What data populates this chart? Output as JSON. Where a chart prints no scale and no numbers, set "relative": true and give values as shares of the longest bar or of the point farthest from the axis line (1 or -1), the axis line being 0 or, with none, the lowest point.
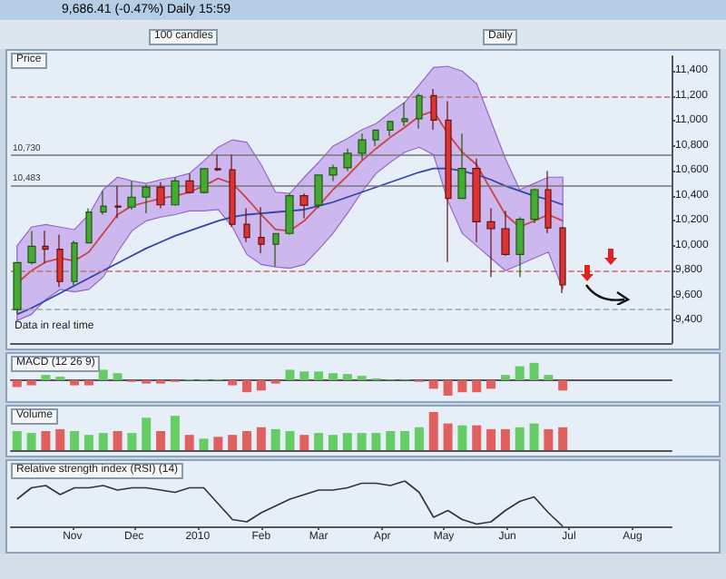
{
  "chart_data": [
    {
      "type": "candlestick",
      "title": "9,686.41 (-0.47%)   Daily 15:59",
      "annotations": [
        "Price",
        "100 candles",
        "Daily",
        "Data in real time"
      ],
      "x": [
        "2009-10-05",
        "2009-10-12",
        "2009-10-19",
        "2009-10-26",
        "2009-11-02",
        "2009-11-09",
        "2009-11-16",
        "2009-11-23",
        "2009-11-30",
        "2009-12-07",
        "2009-12-14",
        "2009-12-21",
        "2009-12-28",
        "2010-01-04",
        "2010-01-11",
        "2010-01-18",
        "2010-01-25",
        "2010-02-01",
        "2010-02-08",
        "2010-02-15",
        "2010-02-22",
        "2010-03-01",
        "2010-03-08",
        "2010-03-15",
        "2010-03-22",
        "2010-03-29",
        "2010-04-05",
        "2010-04-12",
        "2010-04-19",
        "2010-04-26",
        "2010-05-03",
        "2010-05-10",
        "2010-05-17",
        "2010-05-24",
        "2010-05-31",
        "2010-06-07",
        "2010-06-14",
        "2010-06-21",
        "2010-06-28"
      ],
      "ohlc": [
        [
          9488,
          9865,
          9460,
          9865
        ],
        [
          9865,
          10119,
          9850,
          9996
        ],
        [
          9996,
          10120,
          9860,
          9972
        ],
        [
          9972,
          10090,
          9670,
          9713
        ],
        [
          9713,
          10040,
          9680,
          10023
        ],
        [
          10023,
          10300,
          10020,
          10271
        ],
        [
          10271,
          10440,
          10250,
          10318
        ],
        [
          10318,
          10480,
          10220,
          10310
        ],
        [
          10310,
          10520,
          10290,
          10390
        ],
        [
          10390,
          10490,
          10260,
          10471
        ],
        [
          10471,
          10510,
          10300,
          10328
        ],
        [
          10328,
          10550,
          10320,
          10520
        ],
        [
          10520,
          10580,
          10420,
          10428
        ],
        [
          10428,
          10620,
          10420,
          10618
        ],
        [
          10618,
          10730,
          10600,
          10610
        ],
        [
          10610,
          10730,
          10150,
          10172
        ],
        [
          10172,
          10300,
          10030,
          10067
        ],
        [
          10067,
          10310,
          9940,
          10012
        ],
        [
          10012,
          10100,
          9835,
          10099
        ],
        [
          10099,
          10420,
          10090,
          10402
        ],
        [
          10402,
          10420,
          10220,
          10325
        ],
        [
          10325,
          10570,
          10300,
          10567
        ],
        [
          10567,
          10650,
          10520,
          10625
        ],
        [
          10625,
          10780,
          10600,
          10742
        ],
        [
          10742,
          10900,
          10690,
          10850
        ],
        [
          10850,
          10930,
          10800,
          10927
        ],
        [
          10927,
          11000,
          10880,
          10997
        ],
        [
          10997,
          11150,
          10960,
          11019
        ],
        [
          11019,
          11220,
          10940,
          11204
        ],
        [
          11204,
          11258,
          10930,
          11008
        ],
        [
          11008,
          11160,
          9870,
          10380
        ],
        [
          10380,
          10900,
          10380,
          10620
        ],
        [
          10620,
          10700,
          10030,
          10193
        ],
        [
          10193,
          10300,
          9750,
          10137
        ],
        [
          10137,
          10280,
          9920,
          9931
        ],
        [
          9931,
          10230,
          9750,
          10212
        ],
        [
          10212,
          10460,
          10180,
          10450
        ],
        [
          10450,
          10600,
          10100,
          10143
        ],
        [
          10143,
          10150,
          9620,
          9686
        ]
      ],
      "series": [
        {
          "type": "line",
          "color": "#cc4444",
          "values": [
            9700,
            9800,
            9870,
            9900,
            9880,
            9950,
            10100,
            10250,
            10320,
            10350,
            10380,
            10400,
            10430,
            10480,
            10540,
            10500,
            10380,
            10250,
            10130,
            10120,
            10200,
            10320,
            10450,
            10560,
            10680,
            10780,
            10870,
            10950,
            11040,
            11080,
            10900,
            10750,
            10650,
            10450,
            10250,
            10150,
            10200,
            10250,
            10200
          ],
          "upper": [
            10000,
            10150,
            10170,
            10150,
            10130,
            10250,
            10450,
            10550,
            10520,
            10500,
            10530,
            10550,
            10580,
            10680,
            10790,
            10850,
            10830,
            10650,
            10430,
            10420,
            10550,
            10670,
            10800,
            10860,
            10930,
            10980,
            11070,
            11150,
            11290,
            11430,
            11440,
            11400,
            11300,
            11000,
            10700,
            10450,
            10500,
            10550,
            10550
          ],
          "lower": [
            9400,
            9450,
            9570,
            9650,
            9630,
            9650,
            9750,
            9950,
            10120,
            10200,
            10230,
            10250,
            10280,
            10280,
            10290,
            10150,
            9930,
            9850,
            9830,
            9820,
            9850,
            9970,
            10100,
            10260,
            10430,
            10580,
            10670,
            10750,
            10790,
            10730,
            10360,
            10100,
            10000,
            9900,
            9800,
            9850,
            9900,
            9950,
            9650
          ]
        },
        {
          "type": "line",
          "color": "#3344aa",
          "values": [
            9450,
            9500,
            9560,
            9620,
            9680,
            9740,
            9800,
            9860,
            9920,
            9980,
            10030,
            10080,
            10120,
            10160,
            10200,
            10230,
            10250,
            10260,
            10270,
            10280,
            10290,
            10320,
            10350,
            10390,
            10430,
            10470,
            10510,
            10550,
            10590,
            10620,
            10620,
            10600,
            10570,
            10530,
            10480,
            10440,
            10400,
            10370,
            10330
          ]
        }
      ],
      "xlim": [
        "2009-10-02",
        "2010-08-20"
      ],
      "ylim": [
        9220,
        11520
      ],
      "yticks": [
        {
          "value": 9400,
          "label": "9,400"
        },
        {
          "value": 9600,
          "label": "9,600"
        },
        {
          "value": 9800,
          "label": "9,800"
        },
        {
          "value": 10000,
          "label": "10,000"
        },
        {
          "value": 10200,
          "label": "10,200"
        },
        {
          "value": 10400,
          "label": "10,400"
        },
        {
          "value": 10600,
          "label": "10,600"
        },
        {
          "value": 10800,
          "label": "10,800"
        },
        {
          "value": 11000,
          "label": "11,000"
        },
        {
          "value": 11200,
          "label": "11,200"
        },
        {
          "value": 11400,
          "label": "11,400"
        }
      ],
      "ref_lines": [
        {
          "axis": "y",
          "value": 11200,
          "color": "#c07070",
          "line_style": "dashed"
        },
        {
          "axis": "y",
          "value": 9800,
          "color": "#c07070",
          "line_style": "dashed"
        },
        {
          "axis": "y",
          "value": 9500,
          "color": "#9aaa9a",
          "line_style": "dashed"
        },
        {
          "axis": "y",
          "value": 10730,
          "label": "10,730",
          "color": "#777777",
          "line_style": "solid"
        },
        {
          "axis": "y",
          "value": 10483,
          "label": "10,483",
          "color": "#777777",
          "line_style": "solid"
        }
      ],
      "tick_labels": "y"
    },
    {
      "type": "bar",
      "title": "MACD (12 26 9)",
      "relative": true,
      "x": [
        "2009-10-05",
        "2009-10-12",
        "2009-10-19",
        "2009-10-26",
        "2009-11-02",
        "2009-11-09",
        "2009-11-16",
        "2009-11-23",
        "2009-11-30",
        "2009-12-07",
        "2009-12-14",
        "2009-12-21",
        "2009-12-28",
        "2010-01-04",
        "2010-01-11",
        "2010-01-18",
        "2010-01-25",
        "2010-02-01",
        "2010-02-08",
        "2010-02-15",
        "2010-02-22",
        "2010-03-01",
        "2010-03-08",
        "2010-03-15",
        "2010-03-22",
        "2010-03-29",
        "2010-04-05",
        "2010-04-12",
        "2010-04-19",
        "2010-04-26",
        "2010-05-03",
        "2010-05-10",
        "2010-05-17",
        "2010-05-24",
        "2010-05-31",
        "2010-06-07",
        "2010-06-14",
        "2010-06-21",
        "2010-06-28"
      ],
      "values": [
        -0.4,
        -0.3,
        0.3,
        0.2,
        -0.3,
        -0.3,
        0.6,
        0.4,
        -0.1,
        -0.2,
        -0.2,
        -0.1,
        0.05,
        0.05,
        0.05,
        -0.3,
        -0.7,
        -0.6,
        -0.2,
        0.6,
        0.5,
        0.5,
        0.4,
        0.35,
        0.25,
        0.1,
        0.03,
        0.03,
        -0.1,
        -0.5,
        -0.9,
        -0.7,
        -0.7,
        -0.5,
        0.3,
        0.8,
        1,
        0.3,
        -0.6
      ],
      "colors": [
        "#e06060",
        "#e06060",
        "#66cc66",
        "#66cc66",
        "#e06060",
        "#e06060",
        "#66cc66",
        "#66cc66",
        "#e06060",
        "#e06060",
        "#e06060",
        "#e06060",
        "#66cc66",
        "#66cc66",
        "#66cc66",
        "#e06060",
        "#e06060",
        "#e06060",
        "#e06060",
        "#66cc66",
        "#66cc66",
        "#66cc66",
        "#66cc66",
        "#66cc66",
        "#66cc66",
        "#66cc66",
        "#66cc66",
        "#66cc66",
        "#e06060",
        "#e06060",
        "#e06060",
        "#e06060",
        "#e06060",
        "#e06060",
        "#66cc66",
        "#66cc66",
        "#66cc66",
        "#66cc66",
        "#e06060"
      ],
      "xlim": [
        "2009-10-02",
        "2010-08-20"
      ],
      "tick_labels": false
    },
    {
      "type": "bar",
      "title": "Volume",
      "relative": true,
      "x": [
        "2009-10-05",
        "2009-10-12",
        "2009-10-19",
        "2009-10-26",
        "2009-11-02",
        "2009-11-09",
        "2009-11-16",
        "2009-11-23",
        "2009-11-30",
        "2009-12-07",
        "2009-12-14",
        "2009-12-21",
        "2009-12-28",
        "2010-01-04",
        "2010-01-11",
        "2010-01-18",
        "2010-01-25",
        "2010-02-01",
        "2010-02-08",
        "2010-02-15",
        "2010-02-22",
        "2010-03-01",
        "2010-03-08",
        "2010-03-15",
        "2010-03-22",
        "2010-03-29",
        "2010-04-05",
        "2010-04-12",
        "2010-04-19",
        "2010-04-26",
        "2010-05-03",
        "2010-05-10",
        "2010-05-17",
        "2010-05-24",
        "2010-05-31",
        "2010-06-07",
        "2010-06-14",
        "2010-06-21",
        "2010-06-28"
      ],
      "values": [
        0.5,
        0.45,
        0.5,
        0.55,
        0.5,
        0.4,
        0.45,
        0.5,
        0.45,
        0.85,
        0.5,
        0.9,
        0.4,
        0.3,
        0.35,
        0.4,
        0.5,
        0.6,
        0.55,
        0.5,
        0.4,
        0.45,
        0.4,
        0.45,
        0.45,
        0.45,
        0.5,
        0.5,
        0.6,
        1,
        0.7,
        0.65,
        0.65,
        0.55,
        0.55,
        0.6,
        0.7,
        0.55,
        0.6
      ],
      "colors": [
        "#66cc66",
        "#66cc66",
        "#e06060",
        "#e06060",
        "#66cc66",
        "#66cc66",
        "#66cc66",
        "#e06060",
        "#66cc66",
        "#66cc66",
        "#e06060",
        "#66cc66",
        "#e06060",
        "#66cc66",
        "#e06060",
        "#e06060",
        "#e06060",
        "#e06060",
        "#66cc66",
        "#66cc66",
        "#e06060",
        "#66cc66",
        "#66cc66",
        "#66cc66",
        "#66cc66",
        "#66cc66",
        "#66cc66",
        "#66cc66",
        "#66cc66",
        "#e06060",
        "#e06060",
        "#66cc66",
        "#e06060",
        "#e06060",
        "#e06060",
        "#66cc66",
        "#66cc66",
        "#e06060",
        "#e06060"
      ],
      "xlim": [
        "2009-10-02",
        "2010-08-20"
      ],
      "tick_labels": false
    },
    {
      "type": "line",
      "title": "Relative strength index (RSI) (14)",
      "relative": true,
      "color": "#333333",
      "x": [
        "2009-10-05",
        "2009-10-12",
        "2009-10-19",
        "2009-10-26",
        "2009-11-02",
        "2009-11-09",
        "2009-11-16",
        "2009-11-23",
        "2009-11-30",
        "2009-12-07",
        "2009-12-14",
        "2009-12-21",
        "2009-12-28",
        "2010-01-04",
        "2010-01-11",
        "2010-01-18",
        "2010-01-25",
        "2010-02-01",
        "2010-02-08",
        "2010-02-15",
        "2010-02-22",
        "2010-03-01",
        "2010-03-08",
        "2010-03-15",
        "2010-03-22",
        "2010-03-29",
        "2010-04-05",
        "2010-04-12",
        "2010-04-19",
        "2010-04-26",
        "2010-05-03",
        "2010-05-10",
        "2010-05-17",
        "2010-05-24",
        "2010-05-31",
        "2010-06-07",
        "2010-06-14",
        "2010-06-21",
        "2010-06-28"
      ],
      "values": [
        0.6,
        0.85,
        0.9,
        0.7,
        0.85,
        0.85,
        0.9,
        0.8,
        0.85,
        0.85,
        0.8,
        0.75,
        0.85,
        0.85,
        0.5,
        0.15,
        0.1,
        0.3,
        0.45,
        0.6,
        0.7,
        0.8,
        0.8,
        0.85,
        0.95,
        0.95,
        0.9,
        1,
        0.75,
        0.2,
        0.35,
        0.15,
        0.05,
        0.1,
        0.35,
        0.55,
        0.65,
        0.3,
        0
      ],
      "xlim": [
        "2009-10-02",
        "2010-08-20"
      ],
      "xticks": [
        {
          "value": "2009-11-01",
          "label": "Nov"
        },
        {
          "value": "2009-12-01",
          "label": "Dec"
        },
        {
          "value": "2010-01-01",
          "label": "2010"
        },
        {
          "value": "2010-02-01",
          "label": "Feb"
        },
        {
          "value": "2010-03-01",
          "label": "Mar"
        },
        {
          "value": "2010-04-01",
          "label": "Apr"
        },
        {
          "value": "2010-05-01",
          "label": "May"
        },
        {
          "value": "2010-06-01",
          "label": "Jun"
        },
        {
          "value": "2010-07-01",
          "label": "Jul"
        },
        {
          "value": "2010-08-01",
          "label": "Aug"
        }
      ],
      "tick_labels": "x"
    }
  ]
}
